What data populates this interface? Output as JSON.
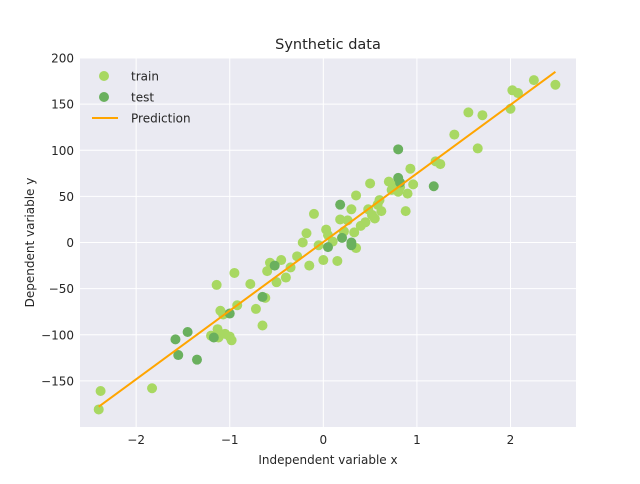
{
  "chart_data": {
    "type": "scatter",
    "title": "Synthetic data",
    "xlabel": "Independent variable x",
    "ylabel": "Dependent variable y",
    "xlim": [
      -2.6,
      2.7
    ],
    "ylim": [
      -200,
      200
    ],
    "x_ticks": [
      -2,
      -1,
      0,
      1,
      2
    ],
    "x_tick_labels": [
      "−2",
      "−1",
      "0",
      "1",
      "2"
    ],
    "y_ticks": [
      -150,
      -100,
      -50,
      0,
      50,
      100,
      150,
      200
    ],
    "y_tick_labels": [
      "−150",
      "−100",
      "−50",
      "0",
      "50",
      "100",
      "150",
      "200"
    ],
    "grid": true,
    "legend_position": "top-left",
    "background": "#eaeaf2",
    "series": [
      {
        "name": "train",
        "kind": "scatter",
        "color": "#a8d862",
        "points": [
          [
            -2.4,
            -181
          ],
          [
            -2.38,
            -161
          ],
          [
            -1.83,
            -158
          ],
          [
            -1.14,
            -46
          ],
          [
            -1.1,
            -74
          ],
          [
            -1.07,
            -78
          ],
          [
            -1.13,
            -94
          ],
          [
            -1.2,
            -101
          ],
          [
            -1.12,
            -103
          ],
          [
            -1.05,
            -99
          ],
          [
            -1.0,
            -102
          ],
          [
            -0.98,
            -106
          ],
          [
            -0.95,
            -33
          ],
          [
            -0.92,
            -68
          ],
          [
            -0.78,
            -45
          ],
          [
            -0.72,
            -72
          ],
          [
            -0.65,
            -90
          ],
          [
            -0.62,
            -60
          ],
          [
            -0.6,
            -31
          ],
          [
            -0.57,
            -22
          ],
          [
            -0.5,
            -43
          ],
          [
            -0.45,
            -19
          ],
          [
            -0.4,
            -38
          ],
          [
            -0.35,
            -27
          ],
          [
            -0.28,
            -15
          ],
          [
            -0.22,
            0
          ],
          [
            -0.18,
            10
          ],
          [
            -0.15,
            -25
          ],
          [
            -0.1,
            31
          ],
          [
            -0.05,
            -3
          ],
          [
            0.0,
            -19
          ],
          [
            0.03,
            14
          ],
          [
            0.05,
            8
          ],
          [
            0.1,
            1
          ],
          [
            0.15,
            -20
          ],
          [
            0.18,
            25
          ],
          [
            0.22,
            12
          ],
          [
            0.26,
            24
          ],
          [
            0.3,
            36
          ],
          [
            0.33,
            11
          ],
          [
            0.35,
            -6
          ],
          [
            0.35,
            51
          ],
          [
            0.4,
            18
          ],
          [
            0.45,
            22
          ],
          [
            0.48,
            36
          ],
          [
            0.5,
            64
          ],
          [
            0.52,
            30
          ],
          [
            0.55,
            26
          ],
          [
            0.58,
            41
          ],
          [
            0.6,
            46
          ],
          [
            0.62,
            34
          ],
          [
            0.7,
            66
          ],
          [
            0.73,
            57
          ],
          [
            0.77,
            62
          ],
          [
            0.8,
            55
          ],
          [
            0.82,
            60
          ],
          [
            0.88,
            34
          ],
          [
            0.9,
            53
          ],
          [
            0.93,
            80
          ],
          [
            0.96,
            63
          ],
          [
            1.2,
            88
          ],
          [
            1.25,
            85
          ],
          [
            1.4,
            117
          ],
          [
            1.55,
            141
          ],
          [
            1.65,
            102
          ],
          [
            1.7,
            138
          ],
          [
            2.0,
            145
          ],
          [
            2.02,
            165
          ],
          [
            2.08,
            162
          ],
          [
            2.25,
            176
          ],
          [
            2.48,
            171
          ]
        ]
      },
      {
        "name": "test",
        "kind": "scatter",
        "color": "#6ab05e",
        "points": [
          [
            -1.58,
            -105
          ],
          [
            -1.55,
            -122
          ],
          [
            -1.45,
            -97
          ],
          [
            -1.35,
            -127
          ],
          [
            -1.17,
            -103
          ],
          [
            -1.0,
            -77
          ],
          [
            -0.65,
            -59
          ],
          [
            -0.52,
            -25
          ],
          [
            0.05,
            -5
          ],
          [
            0.2,
            5
          ],
          [
            0.18,
            41
          ],
          [
            0.3,
            0
          ],
          [
            0.3,
            -3
          ],
          [
            0.8,
            101
          ],
          [
            0.8,
            70
          ],
          [
            0.82,
            65
          ],
          [
            1.18,
            61
          ]
        ]
      },
      {
        "name": "Prediction",
        "kind": "line",
        "color": "#ffa500",
        "points": [
          [
            -2.4,
            -178
          ],
          [
            2.48,
            185
          ]
        ]
      }
    ]
  }
}
